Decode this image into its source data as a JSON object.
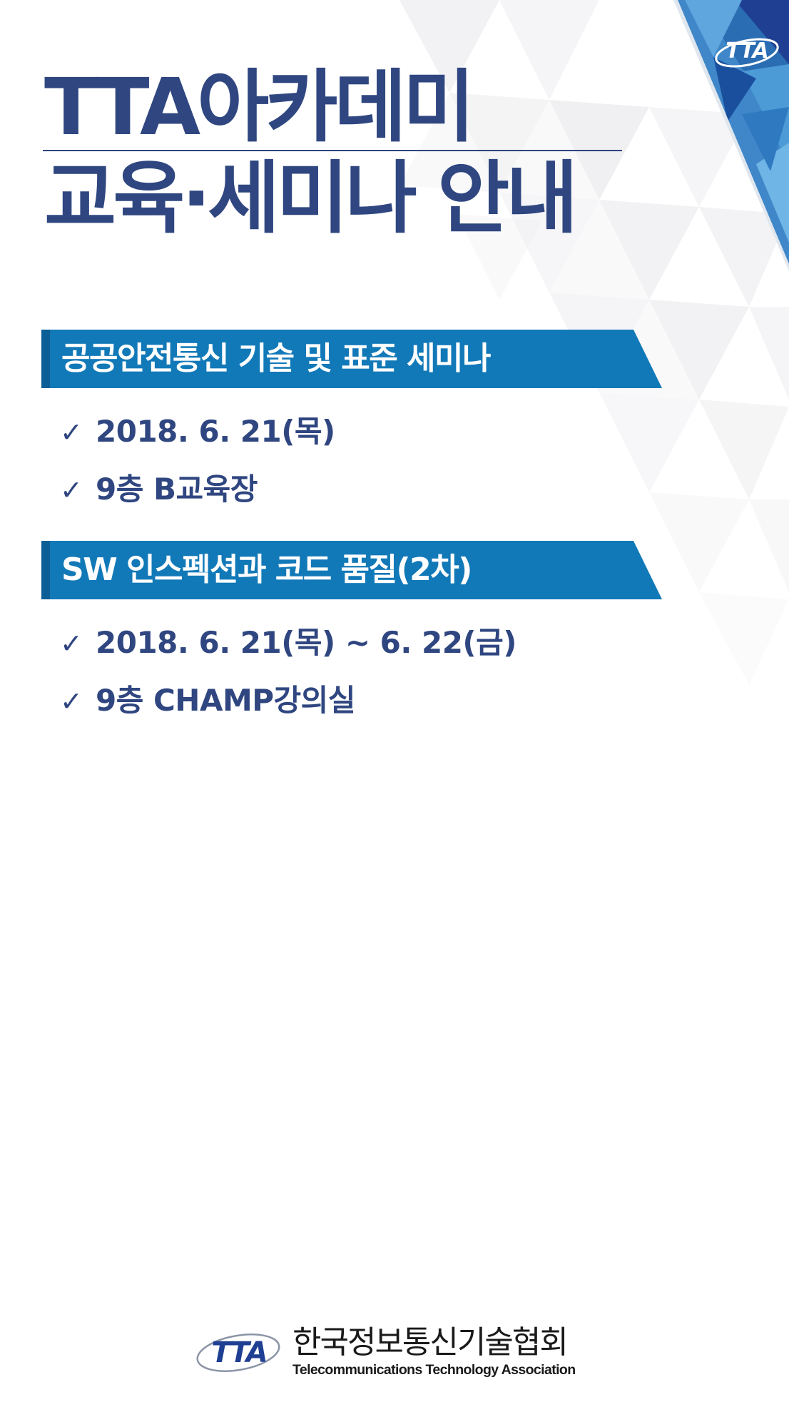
{
  "colors": {
    "title": "#2f4680",
    "banner": "#1279b8",
    "banner_accent": "#0b5e96",
    "banner_text": "#ffffff",
    "logo_blue": "#1f3f93"
  },
  "title": {
    "line1": "TTA아카데미",
    "line2": "교육·세미나 안내"
  },
  "sections": [
    {
      "heading": "공공안전통신 기술 및 표준 세미나",
      "items": [
        {
          "icon": "check-icon",
          "text": "2018. 6. 21(목)"
        },
        {
          "icon": "check-icon",
          "text": "9층 B교육장"
        }
      ]
    },
    {
      "heading": "SW 인스펙션과 코드 품질(2차)",
      "items": [
        {
          "icon": "check-icon",
          "text": "2018. 6. 21(목) ~ 6. 22(금)"
        },
        {
          "icon": "check-icon",
          "text": "9층 CHAMP강의실"
        }
      ]
    }
  ],
  "check_glyph": "✓",
  "corner_logo": {
    "text": "TTA"
  },
  "footer": {
    "logo_text": "TTA",
    "org_name_ko": "한국정보통신기술협회",
    "org_name_en": "Telecommunications Technology Association"
  }
}
